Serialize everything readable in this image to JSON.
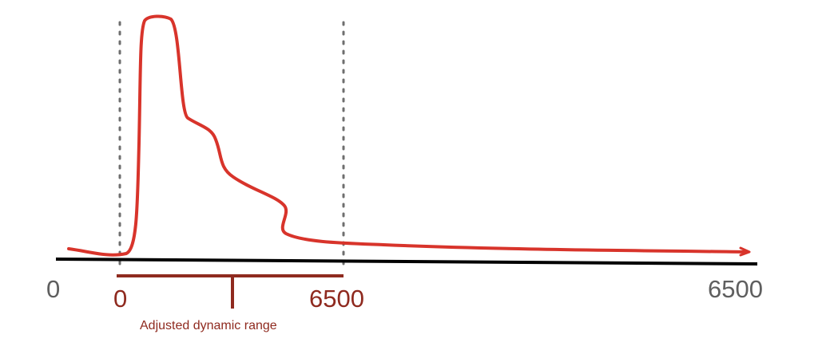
{
  "diagram": {
    "full_range": {
      "min_label": "0",
      "max_label": "6500"
    },
    "adjusted_range": {
      "min_label": "0",
      "max_label": "6500",
      "caption": "Adjusted dynamic range"
    },
    "colors": {
      "curve": "#d8342b",
      "axis": "#000000",
      "full_label": "#5f5f5f",
      "adjusted": "#8f2a1f",
      "guide_lines": "#6e6e6e"
    }
  }
}
